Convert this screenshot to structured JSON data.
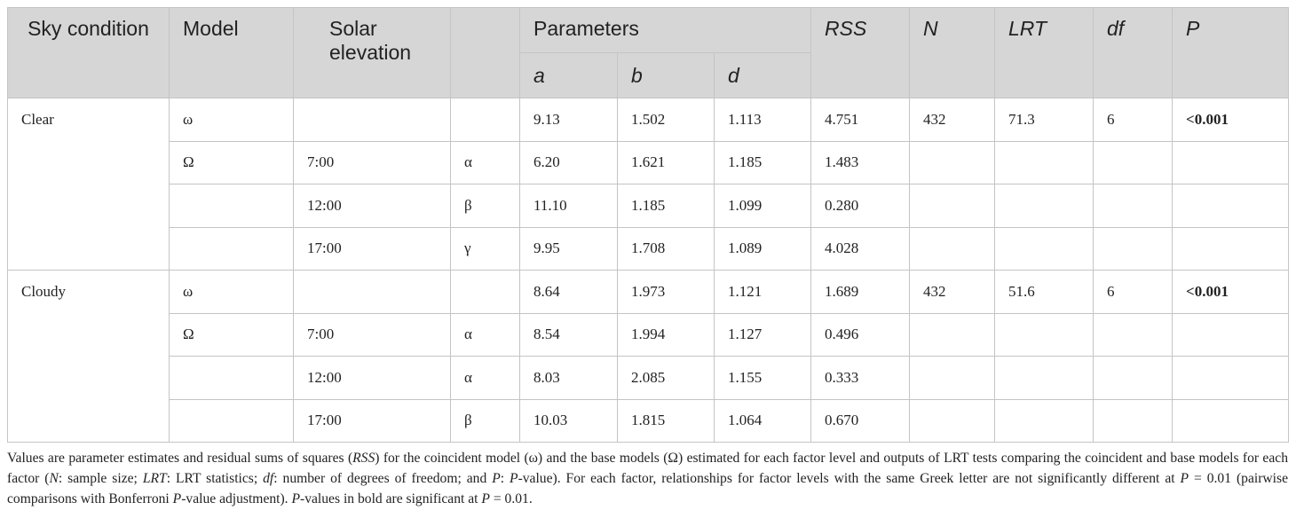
{
  "table": {
    "header": {
      "sky": "Sky condition",
      "model": "Model",
      "elevation": "Solar elevation",
      "parameters": "Parameters",
      "params": [
        "a",
        "b",
        "d"
      ],
      "rss": "RSS",
      "n": "N",
      "lrt": "LRT",
      "df": "df",
      "p": "P"
    },
    "groups": [
      {
        "sky": "Clear",
        "rows": [
          {
            "cells": [
              "ω",
              null,
              null,
              "9.13",
              "1.502",
              "1.113",
              "4.751",
              "432",
              "71.3",
              "6",
              "<0.001"
            ],
            "bold_last": true
          },
          {
            "cells": [
              "Ω",
              "7:00",
              "α",
              "6.20",
              "1.621",
              "1.185",
              "1.483",
              null,
              null,
              null,
              null
            ]
          },
          {
            "cells": [
              null,
              "12:00",
              "β",
              "11.10",
              "1.185",
              "1.099",
              "0.280",
              null,
              null,
              null,
              null
            ]
          },
          {
            "cells": [
              null,
              "17:00",
              "γ",
              "9.95",
              "1.708",
              "1.089",
              "4.028",
              null,
              null,
              null,
              null
            ]
          }
        ]
      },
      {
        "sky": "Cloudy",
        "rows": [
          {
            "cells": [
              "ω",
              null,
              null,
              "8.64",
              "1.973",
              "1.121",
              "1.689",
              "432",
              "51.6",
              "6",
              "<0.001"
            ],
            "bold_last": true
          },
          {
            "cells": [
              "Ω",
              "7:00",
              "α",
              "8.54",
              "1.994",
              "1.127",
              "0.496",
              null,
              null,
              null,
              null
            ]
          },
          {
            "cells": [
              null,
              "12:00",
              "α",
              "8.03",
              "2.085",
              "1.155",
              "0.333",
              null,
              null,
              null,
              null
            ]
          },
          {
            "cells": [
              null,
              "17:00",
              "β",
              "10.03",
              "1.815",
              "1.064",
              "0.670",
              null,
              null,
              null,
              null
            ]
          }
        ]
      }
    ]
  },
  "caption": [
    {
      "text": "Values are parameter estimates and residual sums of squares ("
    },
    {
      "text": "RSS",
      "italic": true
    },
    {
      "text": ") for the coincident model (ω) and the base models (Ω) estimated for each factor level and outputs of LRT tests comparing the coincident and base models for each factor ("
    },
    {
      "text": "N",
      "italic": true
    },
    {
      "text": ": sample size; "
    },
    {
      "text": "LRT",
      "italic": true
    },
    {
      "text": ": LRT statistics; "
    },
    {
      "text": "df",
      "italic": true
    },
    {
      "text": ": number of degrees of freedom; and "
    },
    {
      "text": "P",
      "italic": true
    },
    {
      "text": ": "
    },
    {
      "text": "P",
      "italic": true
    },
    {
      "text": "-value). For each factor, relationships for factor levels with the same Greek letter are not significantly different at "
    },
    {
      "text": "P",
      "italic": true
    },
    {
      "text": " = 0.01 (pairwise comparisons with Bonferroni "
    },
    {
      "text": "P",
      "italic": true
    },
    {
      "text": "-value adjustment). "
    },
    {
      "text": "P",
      "italic": true
    },
    {
      "text": "-values in bold are significant at "
    },
    {
      "text": "P",
      "italic": true
    },
    {
      "text": " = 0.01."
    }
  ]
}
